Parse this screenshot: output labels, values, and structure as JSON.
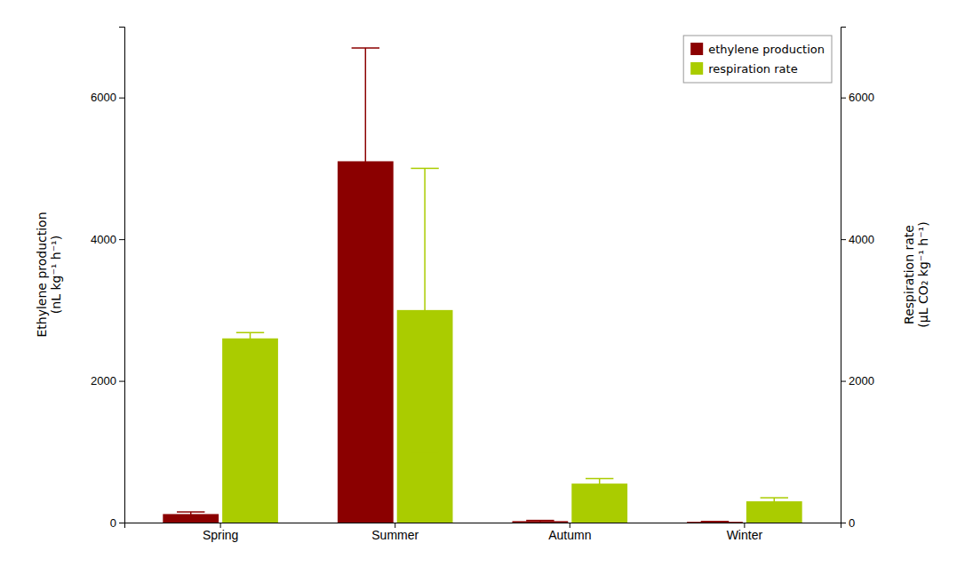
{
  "chart_data": {
    "type": "bar",
    "categories": [
      "Spring",
      "Summer",
      "Autumn",
      "Winter"
    ],
    "series": [
      {
        "name": "ethylene production",
        "color": "#8B0000",
        "values": [
          120,
          5100,
          20,
          10
        ],
        "errors": [
          30,
          1600,
          10,
          5
        ]
      },
      {
        "name": "respiration rate",
        "color": "#AACC00",
        "values": [
          2600,
          3000,
          550,
          300
        ],
        "errors": [
          80,
          2000,
          70,
          50
        ],
        "axis": "y2"
      }
    ],
    "ylabel": "Ethylene production\n(nL kg⁻¹ h⁻¹)",
    "y2label": "Respiration rate\n(μL CO₂ kg⁻¹ h⁻¹)",
    "ylim": [
      0,
      7000
    ],
    "yticks": [
      0,
      2000,
      4000,
      6000
    ],
    "y2lim": [
      0,
      7000
    ],
    "y2ticks": [
      0,
      2000,
      4000,
      6000
    ],
    "legend": "upper right",
    "grid": false
  }
}
